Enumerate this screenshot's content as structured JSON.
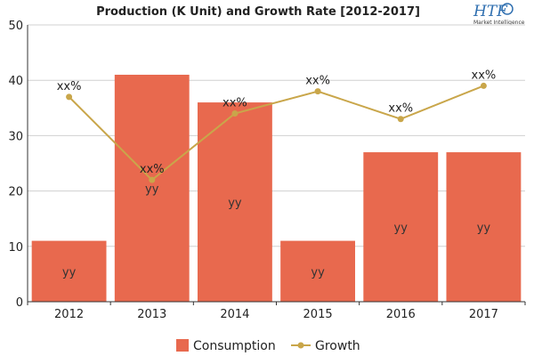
{
  "logo": {
    "main": "HTF",
    "sub": "Market Intelligence"
  },
  "chart_data": {
    "type": "bar",
    "title": "Production (K Unit) and Growth Rate [2012-2017]",
    "categories": [
      "2012",
      "2013",
      "2014",
      "2015",
      "2016",
      "2017"
    ],
    "ylim": [
      0,
      50
    ],
    "yticks": [
      0,
      10,
      20,
      30,
      40,
      50
    ],
    "grid": true,
    "legend_position": "bottom",
    "series": [
      {
        "name": "Consumption",
        "type": "bar",
        "color": "#e8694e",
        "values": [
          11,
          41,
          36,
          11,
          27,
          27
        ],
        "labels": [
          "yy",
          "yy",
          "yy",
          "yy",
          "yy",
          "yy"
        ]
      },
      {
        "name": "Growth",
        "type": "line",
        "color": "#c9a64a",
        "values": [
          37,
          22,
          34,
          38,
          33,
          39
        ],
        "labels": [
          "xx%",
          "xx%",
          "xx%",
          "xx%",
          "xx%",
          "xx%"
        ]
      }
    ]
  }
}
